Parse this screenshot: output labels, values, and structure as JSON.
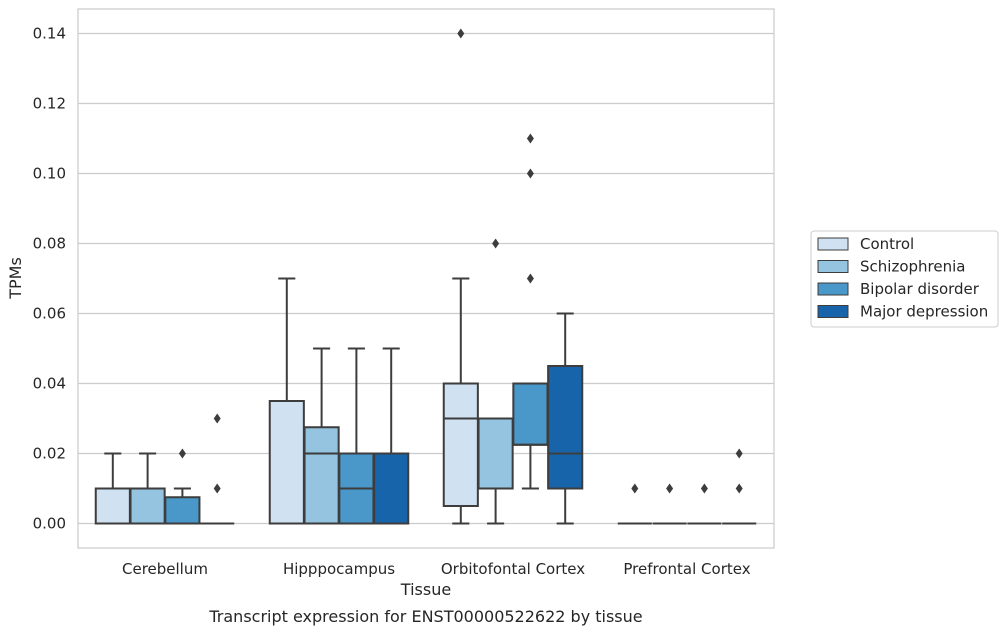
{
  "chart_data": {
    "type": "box",
    "xlabel": "Tissue",
    "ylabel": "TPMs",
    "caption": "Transcript expression for ENST00000522622 by tissue",
    "ylim": [
      -0.007,
      0.147
    ],
    "yticks": [
      0.0,
      0.02,
      0.04,
      0.06,
      0.08,
      0.1,
      0.12,
      0.14
    ],
    "ytick_labels": [
      "0.00",
      "0.02",
      "0.04",
      "0.06",
      "0.08",
      "0.10",
      "0.12",
      "0.14"
    ],
    "grid": "horizontal",
    "legend_position": "right",
    "categories": [
      "Cerebellum",
      "Hipppocampus",
      "Orbitofontal Cortex",
      "Prefrontal Cortex"
    ],
    "series": [
      {
        "name": "Control",
        "color": "#d0e1f2",
        "boxes": [
          {
            "whislo": 0.0,
            "q1": 0.0,
            "med": 0.0,
            "q3": 0.01,
            "whishi": 0.02,
            "fliers": []
          },
          {
            "whislo": 0.0,
            "q1": 0.0,
            "med": 0.0,
            "q3": 0.035,
            "whishi": 0.07,
            "fliers": []
          },
          {
            "whislo": 0.0,
            "q1": 0.005,
            "med": 0.03,
            "q3": 0.04,
            "whishi": 0.07,
            "fliers": [
              0.14
            ]
          },
          {
            "whislo": 0.0,
            "q1": 0.0,
            "med": 0.0,
            "q3": 0.0,
            "whishi": 0.0,
            "fliers": [
              0.01
            ]
          }
        ]
      },
      {
        "name": "Schizophrenia",
        "color": "#94c4df",
        "boxes": [
          {
            "whislo": 0.0,
            "q1": 0.0,
            "med": 0.0,
            "q3": 0.01,
            "whishi": 0.02,
            "fliers": []
          },
          {
            "whislo": 0.0,
            "q1": 0.0,
            "med": 0.02,
            "q3": 0.0275,
            "whishi": 0.05,
            "fliers": []
          },
          {
            "whislo": 0.0,
            "q1": 0.01,
            "med": 0.03,
            "q3": 0.03,
            "whishi": 0.03,
            "fliers": [
              0.08
            ]
          },
          {
            "whislo": 0.0,
            "q1": 0.0,
            "med": 0.0,
            "q3": 0.0,
            "whishi": 0.0,
            "fliers": [
              0.01
            ]
          }
        ]
      },
      {
        "name": "Bipolar disorder",
        "color": "#4a98c9",
        "boxes": [
          {
            "whislo": 0.0,
            "q1": 0.0,
            "med": 0.0,
            "q3": 0.0075,
            "whishi": 0.01,
            "fliers": [
              0.02
            ]
          },
          {
            "whislo": 0.0,
            "q1": 0.0,
            "med": 0.01,
            "q3": 0.02,
            "whishi": 0.05,
            "fliers": []
          },
          {
            "whislo": 0.01,
            "q1": 0.0225,
            "med": 0.0225,
            "q3": 0.04,
            "whishi": 0.04,
            "fliers": [
              0.07,
              0.1,
              0.11
            ]
          },
          {
            "whislo": 0.0,
            "q1": 0.0,
            "med": 0.0,
            "q3": 0.0,
            "whishi": 0.0,
            "fliers": [
              0.01
            ]
          }
        ]
      },
      {
        "name": "Major depression",
        "color": "#1764ab",
        "boxes": [
          {
            "whislo": 0.0,
            "q1": 0.0,
            "med": 0.0,
            "q3": 0.0,
            "whishi": 0.0,
            "fliers": [
              0.01,
              0.03
            ]
          },
          {
            "whislo": 0.0,
            "q1": 0.0,
            "med": 0.0,
            "q3": 0.02,
            "whishi": 0.05,
            "fliers": []
          },
          {
            "whislo": 0.0,
            "q1": 0.01,
            "med": 0.02,
            "q3": 0.045,
            "whishi": 0.06,
            "fliers": []
          },
          {
            "whislo": 0.0,
            "q1": 0.0,
            "med": 0.0,
            "q3": 0.0,
            "whishi": 0.0,
            "fliers": [
              0.01,
              0.02
            ]
          }
        ]
      }
    ]
  }
}
